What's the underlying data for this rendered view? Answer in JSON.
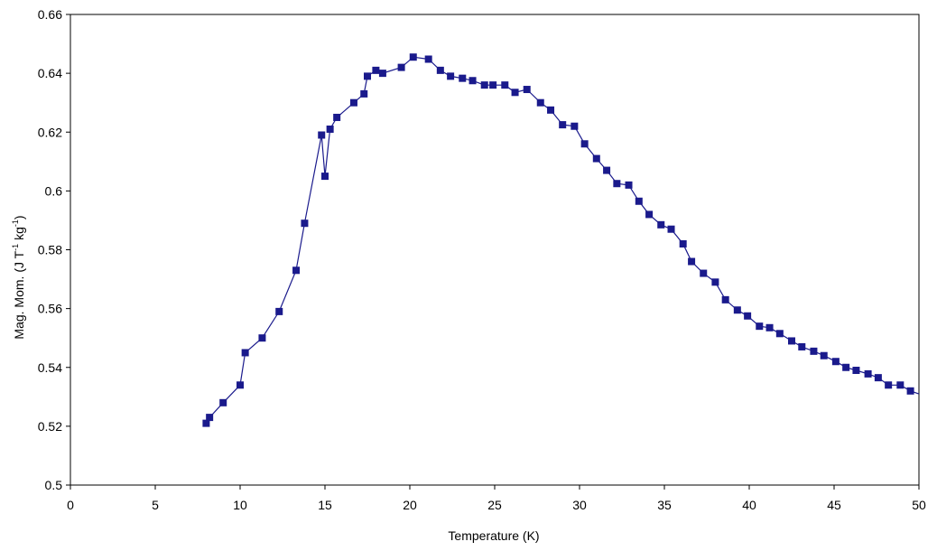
{
  "chart_data": {
    "type": "scatter",
    "xlabel": "Temperature (K)",
    "ylabel": {
      "prefix": "Mag. Mom. (J T",
      "sup1": "-1",
      "mid": " kg",
      "sup2": "-1",
      "suffix": ")"
    },
    "xlim": [
      0,
      50
    ],
    "ylim": [
      0.5,
      0.66
    ],
    "xticks": [
      0,
      5,
      10,
      15,
      20,
      25,
      30,
      35,
      40,
      45,
      50
    ],
    "yticks": [
      0.5,
      0.52,
      0.54,
      0.56,
      0.58,
      0.6,
      0.62,
      0.64,
      0.66
    ],
    "xtick_labels": [
      "0",
      "5",
      "10",
      "15",
      "20",
      "25",
      "30",
      "35",
      "40",
      "45",
      "50"
    ],
    "ytick_labels": [
      "0.5",
      "0.52",
      "0.54",
      "0.56",
      "0.58",
      "0.6",
      "0.62",
      "0.64",
      "0.66"
    ],
    "grid": false,
    "legend": "none",
    "series": [
      {
        "color": "#1a1a8c",
        "marker": "square",
        "x": [
          8.0,
          8.2,
          9.0,
          10.0,
          10.3,
          11.3,
          12.3,
          13.3,
          13.8,
          14.8,
          15.0,
          15.3,
          15.7,
          16.7,
          17.3,
          17.5,
          18.0,
          18.4,
          19.5,
          20.2,
          21.1,
          21.8,
          22.4,
          23.1,
          23.7,
          24.4,
          24.9,
          25.6,
          26.2,
          26.9,
          27.7,
          28.3,
          29.0,
          29.7,
          30.3,
          31.0,
          31.6,
          32.2,
          32.9,
          33.5,
          34.1,
          34.8,
          35.4,
          36.1,
          36.6,
          37.3,
          38.0,
          38.6,
          39.3,
          39.9,
          40.6,
          41.2,
          41.8,
          42.5,
          43.1,
          43.8,
          44.4,
          45.1,
          45.7,
          46.3,
          47.0,
          47.6,
          48.2,
          48.9,
          49.5,
          50.0
        ],
        "y": [
          0.521,
          0.523,
          0.528,
          0.534,
          0.545,
          0.55,
          0.559,
          0.573,
          0.589,
          0.619,
          0.605,
          0.621,
          0.625,
          0.63,
          0.633,
          0.639,
          0.641,
          0.64,
          0.642,
          0.6455,
          0.6448,
          0.641,
          0.639,
          0.6383,
          0.6375,
          0.636,
          0.636,
          0.636,
          0.6335,
          0.6345,
          0.63,
          0.6275,
          0.6225,
          0.622,
          0.616,
          0.611,
          0.607,
          0.6025,
          0.602,
          0.5965,
          0.592,
          0.5885,
          0.587,
          0.582,
          0.576,
          0.572,
          0.569,
          0.563,
          0.5595,
          0.5575,
          0.554,
          0.5535,
          0.5515,
          0.549,
          0.547,
          0.5455,
          0.544,
          0.542,
          0.54,
          0.539,
          0.5378,
          0.5365,
          0.534,
          0.534,
          0.532,
          0.531
        ]
      }
    ]
  }
}
